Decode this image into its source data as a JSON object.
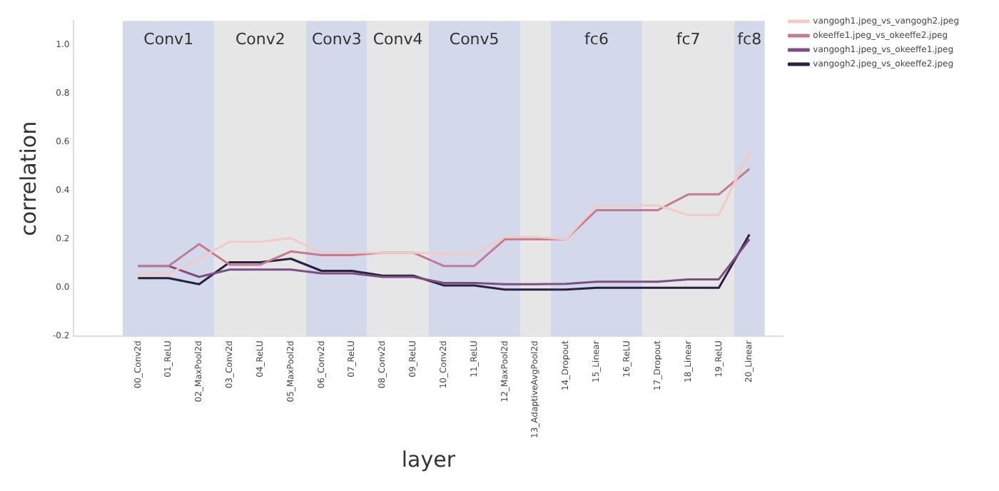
{
  "chart_data": {
    "type": "line",
    "xlabel": "layer",
    "ylabel": "correlation",
    "categories": [
      "00_Conv2d",
      "01_ReLU",
      "02_MaxPool2d",
      "03_Conv2d",
      "04_ReLU",
      "05_MaxPool2d",
      "06_Conv2d",
      "07_ReLU",
      "08_Conv2d",
      "09_ReLU",
      "10_Conv2d",
      "11_ReLU",
      "12_MaxPool2d",
      "13_AdaptiveAvgPool2d",
      "14_Dropout",
      "15_Linear",
      "16_ReLU",
      "17_Dropout",
      "18_Linear",
      "19_ReLU",
      "20_Linear"
    ],
    "series": [
      {
        "name": "vangogh1.jpeg_vs_vangogh2.jpeg",
        "color": "#f2cbc4",
        "values": [
          0.058,
          0.058,
          0.12,
          0.19,
          0.19,
          0.205,
          0.145,
          0.145,
          0.145,
          0.145,
          0.14,
          0.14,
          0.21,
          0.21,
          0.2,
          0.34,
          0.34,
          0.34,
          0.3,
          0.3,
          0.56
        ]
      },
      {
        "name": "okeeffe1.jpeg_vs_okeeffe2.jpeg",
        "color": "#c27b92",
        "values": [
          0.09,
          0.09,
          0.18,
          0.095,
          0.095,
          0.15,
          0.135,
          0.135,
          0.145,
          0.145,
          0.09,
          0.09,
          0.2,
          0.2,
          0.2,
          0.32,
          0.32,
          0.32,
          0.385,
          0.385,
          0.49
        ]
      },
      {
        "name": "vangogh1.jpeg_vs_okeeffe1.jpeg",
        "color": "#7b4f82",
        "values": [
          0.09,
          0.09,
          0.045,
          0.075,
          0.075,
          0.075,
          0.06,
          0.06,
          0.045,
          0.045,
          0.02,
          0.02,
          0.015,
          0.015,
          0.016,
          0.025,
          0.025,
          0.025,
          0.035,
          0.035,
          0.2
        ]
      },
      {
        "name": "vangogh2.jpeg_vs_okeeffe2.jpeg",
        "color": "#2b2040",
        "values": [
          0.04,
          0.04,
          0.015,
          0.105,
          0.105,
          0.12,
          0.07,
          0.07,
          0.05,
          0.05,
          0.01,
          0.01,
          -0.007,
          -0.007,
          -0.007,
          0.0,
          0.0,
          0.0,
          0.0,
          0.0,
          0.22
        ]
      }
    ],
    "ylim": [
      -0.2,
      1.1
    ],
    "yticks": [
      -0.2,
      {
        "value": 0,
        "label": "0.0"
      },
      0.2,
      0.4,
      0.6,
      0.8,
      {
        "value": 1,
        "label": "1.0"
      }
    ],
    "bands": [
      {
        "axis": "x",
        "from": "00_Conv2d",
        "to": "02_MaxPool2d",
        "label": "Conv1",
        "color": "#d3d9eb"
      },
      {
        "axis": "x",
        "from": "03_Conv2d",
        "to": "05_MaxPool2d",
        "label": "Conv2",
        "color": "#e6e6e6"
      },
      {
        "axis": "x",
        "from": "06_Conv2d",
        "to": "07_ReLU",
        "label": "Conv3",
        "color": "#d3d9eb"
      },
      {
        "axis": "x",
        "from": "08_Conv2d",
        "to": "09_ReLU",
        "label": "Conv4",
        "color": "#e6e6e6"
      },
      {
        "axis": "x",
        "from": "10_Conv2d",
        "to": "12_MaxPool2d",
        "label": "Conv5",
        "color": "#d3d9eb"
      },
      {
        "axis": "x",
        "from": "13_AdaptiveAvgPool2d",
        "to": "13_AdaptiveAvgPool2d",
        "color": "#e6e6e6"
      },
      {
        "axis": "x",
        "from": "14_Dropout",
        "to": "16_ReLU",
        "label": "fc6",
        "color": "#d3d9eb"
      },
      {
        "axis": "x",
        "from": "17_Dropout",
        "to": "19_ReLU",
        "label": "fc7",
        "color": "#e6e6e6"
      },
      {
        "axis": "x",
        "from": "20_Linear",
        "to": "20_Linear",
        "label": "fc8",
        "color": "#d3d9eb"
      }
    ],
    "grid": false,
    "legend": "right",
    "marker": "none",
    "line_style": "solid"
  }
}
